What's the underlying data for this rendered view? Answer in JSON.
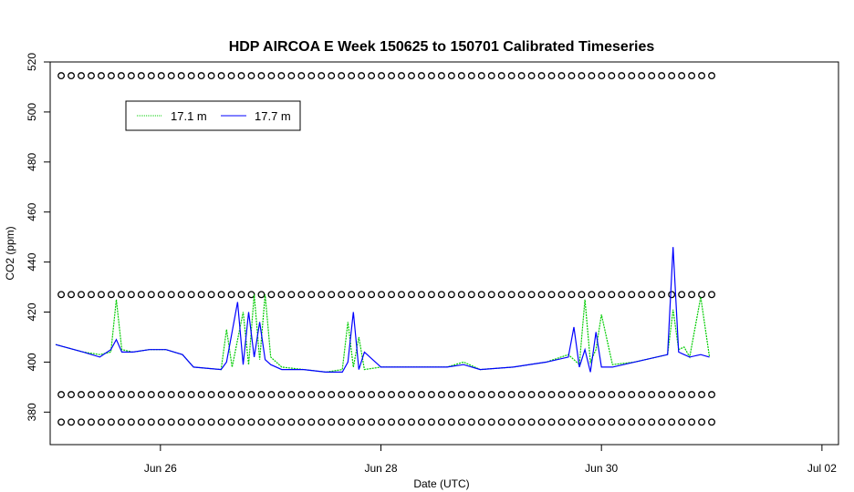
{
  "chart_data": {
    "type": "line",
    "title": "HDP AIRCOA E  Week 150625 to 150701  Calibrated Timeseries",
    "xlabel": "Date (UTC)",
    "ylabel": "CO2 (ppm)",
    "x_unit": "days (June 2015)",
    "xlim": [
      25.0,
      32.15
    ],
    "ylim": [
      367,
      520
    ],
    "x_ticks": [
      {
        "value": 26,
        "label": "Jun 26"
      },
      {
        "value": 28,
        "label": "Jun 28"
      },
      {
        "value": 30,
        "label": "Jun 30"
      },
      {
        "value": 32,
        "label": "Jul 02"
      }
    ],
    "y_ticks": [
      380,
      400,
      420,
      440,
      460,
      480,
      500,
      520
    ],
    "grid": false,
    "legend": {
      "position": "top-left",
      "entries": [
        {
          "label": "17.1 m",
          "color": "#00cc00",
          "style": "dotted"
        },
        {
          "label": "17.7 m",
          "color": "#0000ff",
          "style": "solid"
        }
      ]
    },
    "series": [
      {
        "name": "17.1 m",
        "color": "#00cc00",
        "x": [
          25.05,
          25.3,
          25.45,
          25.55,
          25.6,
          25.65,
          25.75,
          25.9,
          26.05,
          26.2,
          26.3,
          26.55,
          26.6,
          26.65,
          26.75,
          26.8,
          26.85,
          26.9,
          26.95,
          27.0,
          27.1,
          27.3,
          27.5,
          27.65,
          27.7,
          27.75,
          27.8,
          27.85,
          28.0,
          28.3,
          28.6,
          28.75,
          28.9,
          29.2,
          29.5,
          29.7,
          29.8,
          29.85,
          29.9,
          29.95,
          30.0,
          30.1,
          30.3,
          30.6,
          30.65,
          30.7,
          30.75,
          30.8,
          30.9,
          30.98
        ],
        "y": [
          407,
          404,
          403,
          404,
          425,
          405,
          404,
          405,
          405,
          403,
          398,
          397,
          413,
          398,
          420,
          399,
          427,
          401,
          427,
          402,
          398,
          397,
          396,
          397,
          416,
          398,
          410,
          397,
          398,
          398,
          398,
          400,
          397,
          398,
          400,
          403,
          399,
          425,
          400,
          405,
          419,
          399,
          400,
          403,
          421,
          405,
          406,
          402,
          426,
          402
        ]
      },
      {
        "name": "17.7 m",
        "color": "#0000ff",
        "x": [
          25.05,
          25.3,
          25.45,
          25.55,
          25.6,
          25.65,
          25.75,
          25.9,
          26.05,
          26.2,
          26.3,
          26.55,
          26.6,
          26.7,
          26.75,
          26.8,
          26.85,
          26.9,
          26.95,
          27.0,
          27.1,
          27.3,
          27.5,
          27.65,
          27.7,
          27.75,
          27.8,
          27.85,
          28.0,
          28.3,
          28.6,
          28.75,
          28.9,
          29.2,
          29.5,
          29.7,
          29.75,
          29.8,
          29.85,
          29.9,
          29.95,
          30.0,
          30.1,
          30.3,
          30.6,
          30.65,
          30.7,
          30.75,
          30.8,
          30.9,
          30.98
        ],
        "y": [
          407,
          404,
          402,
          405,
          409,
          404,
          404,
          405,
          405,
          403,
          398,
          397,
          400,
          424,
          399,
          420,
          402,
          416,
          401,
          399,
          397,
          397,
          396,
          396,
          400,
          420,
          397,
          404,
          398,
          398,
          398,
          399,
          397,
          398,
          400,
          402,
          414,
          398,
          405,
          396,
          412,
          398,
          398,
          400,
          403,
          446,
          404,
          403,
          402,
          403,
          402
        ]
      }
    ],
    "reference_markers": {
      "symbol": "o",
      "levels": [
        514.5,
        427,
        387,
        376
      ],
      "x_start": 25.1,
      "x_end": 31.0,
      "count": 66
    }
  }
}
